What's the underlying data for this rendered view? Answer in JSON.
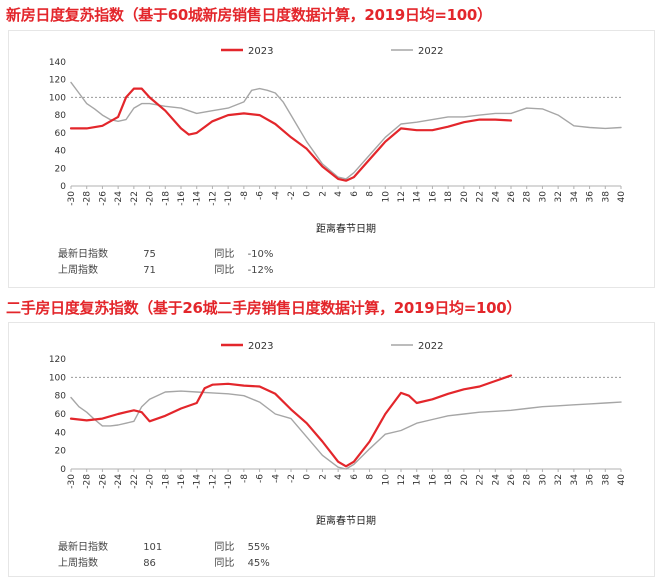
{
  "chart_data": [
    {
      "type": "line",
      "title": "新房日度复苏指数（基于60城新房销售日度数据计算，2019日均=100）",
      "xlabel": "距离春节日期",
      "ylabel": "",
      "ylim": [
        0,
        140
      ],
      "yticks": [
        0,
        20,
        40,
        60,
        80,
        100,
        120,
        140
      ],
      "xlim": [
        -30,
        40
      ],
      "xticks": [
        -30,
        -28,
        -26,
        -24,
        -22,
        -20,
        -18,
        -16,
        -14,
        -12,
        -10,
        -8,
        -6,
        -4,
        -2,
        0,
        2,
        4,
        6,
        8,
        10,
        12,
        14,
        16,
        18,
        20,
        22,
        24,
        26,
        28,
        30,
        32,
        34,
        36,
        38,
        40
      ],
      "reference_line": 100,
      "legend": "top",
      "series": [
        {
          "name": "2023",
          "color": "#e3262b",
          "x": [
            -30,
            -28,
            -26,
            -24,
            -23,
            -22,
            -21,
            -20,
            -18,
            -16,
            -15,
            -14,
            -12,
            -10,
            -8,
            -6,
            -4,
            -2,
            0,
            2,
            4,
            5,
            6,
            8,
            10,
            12,
            14,
            16,
            18,
            20,
            22,
            24,
            26
          ],
          "y": [
            65,
            65,
            68,
            78,
            100,
            110,
            110,
            100,
            85,
            65,
            58,
            60,
            73,
            80,
            82,
            80,
            70,
            55,
            42,
            22,
            8,
            6,
            10,
            30,
            50,
            65,
            63,
            63,
            67,
            72,
            75,
            75,
            74
          ]
        },
        {
          "name": "2022",
          "color": "#a6a6a6",
          "x": [
            -30,
            -29,
            -28,
            -27,
            -26,
            -25,
            -24,
            -23,
            -22,
            -21,
            -20,
            -18,
            -16,
            -14,
            -12,
            -10,
            -8,
            -7,
            -6,
            -5,
            -4,
            -3,
            -2,
            0,
            2,
            4,
            5,
            6,
            8,
            10,
            12,
            14,
            16,
            18,
            20,
            22,
            24,
            26,
            28,
            30,
            32,
            34,
            36,
            38,
            40
          ],
          "y": [
            117,
            105,
            93,
            87,
            80,
            75,
            73,
            75,
            88,
            93,
            93,
            90,
            88,
            82,
            85,
            88,
            95,
            108,
            110,
            108,
            105,
            95,
            80,
            50,
            25,
            10,
            8,
            15,
            35,
            55,
            70,
            72,
            75,
            78,
            78,
            80,
            82,
            82,
            88,
            87,
            80,
            68,
            66,
            65,
            66
          ]
        }
      ],
      "stats": [
        {
          "label": "最新日指数",
          "value": "75",
          "yoy_label": "同比",
          "yoy": "-10%"
        },
        {
          "label": "上周指数",
          "value": "71",
          "yoy_label": "同比",
          "yoy": "-12%"
        }
      ]
    },
    {
      "type": "line",
      "title": "二手房日度复苏指数（基于26城二手房销售日度数据计算，2019日均=100）",
      "xlabel": "距离春节日期",
      "ylabel": "",
      "ylim": [
        0,
        120
      ],
      "yticks": [
        0,
        20,
        40,
        60,
        80,
        100,
        120
      ],
      "xlim": [
        -30,
        40
      ],
      "xticks": [
        -30,
        -28,
        -26,
        -24,
        -22,
        -20,
        -18,
        -16,
        -14,
        -12,
        -10,
        -8,
        -6,
        -4,
        -2,
        0,
        2,
        4,
        6,
        8,
        10,
        12,
        14,
        16,
        18,
        20,
        22,
        24,
        26,
        28,
        30,
        32,
        34,
        36,
        38,
        40
      ],
      "reference_line": 100,
      "legend": "top",
      "series": [
        {
          "name": "2023",
          "color": "#e3262b",
          "x": [
            -30,
            -28,
            -26,
            -24,
            -22,
            -21,
            -20,
            -18,
            -16,
            -14,
            -13,
            -12,
            -10,
            -8,
            -6,
            -4,
            -2,
            0,
            2,
            4,
            5,
            6,
            8,
            10,
            12,
            13,
            14,
            16,
            18,
            20,
            22,
            24,
            26
          ],
          "y": [
            55,
            53,
            55,
            60,
            64,
            62,
            52,
            58,
            66,
            72,
            88,
            92,
            93,
            91,
            90,
            82,
            65,
            50,
            30,
            8,
            3,
            8,
            30,
            60,
            83,
            80,
            72,
            76,
            82,
            87,
            90,
            96,
            102
          ]
        },
        {
          "name": "2022",
          "color": "#a6a6a6",
          "x": [
            -30,
            -29,
            -28,
            -27,
            -26,
            -25,
            -24,
            -23,
            -22,
            -21,
            -20,
            -18,
            -16,
            -14,
            -12,
            -10,
            -8,
            -6,
            -4,
            -2,
            0,
            2,
            4,
            5,
            6,
            8,
            10,
            12,
            14,
            16,
            18,
            20,
            22,
            24,
            26,
            28,
            30,
            32,
            34,
            36,
            38,
            40
          ],
          "y": [
            78,
            68,
            62,
            54,
            47,
            47,
            48,
            50,
            52,
            68,
            76,
            84,
            85,
            84,
            83,
            82,
            80,
            73,
            60,
            55,
            35,
            15,
            2,
            0,
            5,
            22,
            38,
            42,
            50,
            54,
            58,
            60,
            62,
            63,
            64,
            66,
            68,
            69,
            70,
            71,
            72,
            73
          ]
        }
      ],
      "stats": [
        {
          "label": "最新日指数",
          "value": "101",
          "yoy_label": "同比",
          "yoy": "55%"
        },
        {
          "label": "上周指数",
          "value": "86",
          "yoy_label": "同比",
          "yoy": "45%"
        }
      ]
    }
  ]
}
